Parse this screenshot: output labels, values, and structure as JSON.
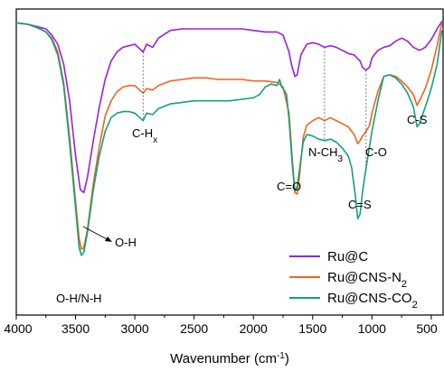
{
  "chart_data": {
    "type": "line",
    "title": "",
    "xlabel": "Wavenumber (cm",
    "xlabel_sup": "-1",
    "xlabel_end": ")",
    "ylabel": "",
    "xlim": [
      4000,
      400
    ],
    "ylim": [
      0,
      1
    ],
    "x_ticks": [
      4000,
      3500,
      3000,
      2500,
      2000,
      1500,
      1000,
      500
    ],
    "x_tick_labels": [
      "4000",
      "3500",
      "3000",
      "2500",
      "2000",
      "1500",
      "1000",
      "500"
    ],
    "legend_position": "bottom-right",
    "series": [
      {
        "name": "Ru@C",
        "color": "#9a1ee6",
        "points": [
          [
            4000,
            0.955
          ],
          [
            3900,
            0.95
          ],
          [
            3800,
            0.94
          ],
          [
            3750,
            0.935
          ],
          [
            3700,
            0.915
          ],
          [
            3650,
            0.885
          ],
          [
            3600,
            0.82
          ],
          [
            3550,
            0.7
          ],
          [
            3500,
            0.52
          ],
          [
            3460,
            0.41
          ],
          [
            3430,
            0.4
          ],
          [
            3400,
            0.45
          ],
          [
            3350,
            0.57
          ],
          [
            3300,
            0.68
          ],
          [
            3250,
            0.77
          ],
          [
            3200,
            0.83
          ],
          [
            3150,
            0.86
          ],
          [
            3100,
            0.875
          ],
          [
            3050,
            0.88
          ],
          [
            3000,
            0.885
          ],
          [
            2960,
            0.87
          ],
          [
            2930,
            0.86
          ],
          [
            2900,
            0.885
          ],
          [
            2850,
            0.875
          ],
          [
            2800,
            0.905
          ],
          [
            2700,
            0.93
          ],
          [
            2600,
            0.935
          ],
          [
            2500,
            0.935
          ],
          [
            2400,
            0.935
          ],
          [
            2300,
            0.935
          ],
          [
            2200,
            0.935
          ],
          [
            2100,
            0.935
          ],
          [
            2000,
            0.93
          ],
          [
            1900,
            0.925
          ],
          [
            1800,
            0.925
          ],
          [
            1750,
            0.915
          ],
          [
            1700,
            0.86
          ],
          [
            1680,
            0.82
          ],
          [
            1650,
            0.78
          ],
          [
            1630,
            0.785
          ],
          [
            1600,
            0.85
          ],
          [
            1550,
            0.885
          ],
          [
            1500,
            0.89
          ],
          [
            1450,
            0.885
          ],
          [
            1400,
            0.875
          ],
          [
            1350,
            0.88
          ],
          [
            1300,
            0.875
          ],
          [
            1250,
            0.865
          ],
          [
            1200,
            0.855
          ],
          [
            1150,
            0.85
          ],
          [
            1100,
            0.83
          ],
          [
            1080,
            0.81
          ],
          [
            1050,
            0.8
          ],
          [
            1020,
            0.81
          ],
          [
            1000,
            0.84
          ],
          [
            950,
            0.865
          ],
          [
            900,
            0.875
          ],
          [
            850,
            0.88
          ],
          [
            800,
            0.895
          ],
          [
            750,
            0.905
          ],
          [
            700,
            0.895
          ],
          [
            650,
            0.875
          ],
          [
            600,
            0.865
          ],
          [
            550,
            0.875
          ],
          [
            500,
            0.9
          ],
          [
            450,
            0.935
          ],
          [
            410,
            0.96
          ]
        ]
      },
      {
        "name": "Ru@CNS-N₂",
        "color": "#f0641e",
        "points": [
          [
            4000,
            0.955
          ],
          [
            3900,
            0.95
          ],
          [
            3800,
            0.935
          ],
          [
            3750,
            0.925
          ],
          [
            3700,
            0.905
          ],
          [
            3650,
            0.86
          ],
          [
            3600,
            0.76
          ],
          [
            3550,
            0.58
          ],
          [
            3500,
            0.37
          ],
          [
            3470,
            0.25
          ],
          [
            3450,
            0.215
          ],
          [
            3430,
            0.22
          ],
          [
            3400,
            0.28
          ],
          [
            3350,
            0.43
          ],
          [
            3300,
            0.55
          ],
          [
            3250,
            0.65
          ],
          [
            3200,
            0.7
          ],
          [
            3150,
            0.73
          ],
          [
            3100,
            0.745
          ],
          [
            3050,
            0.75
          ],
          [
            3000,
            0.75
          ],
          [
            2960,
            0.735
          ],
          [
            2930,
            0.725
          ],
          [
            2900,
            0.74
          ],
          [
            2850,
            0.735
          ],
          [
            2800,
            0.75
          ],
          [
            2700,
            0.765
          ],
          [
            2600,
            0.77
          ],
          [
            2500,
            0.775
          ],
          [
            2400,
            0.775
          ],
          [
            2300,
            0.77
          ],
          [
            2200,
            0.77
          ],
          [
            2100,
            0.77
          ],
          [
            2000,
            0.765
          ],
          [
            1900,
            0.765
          ],
          [
            1800,
            0.76
          ],
          [
            1750,
            0.745
          ],
          [
            1700,
            0.66
          ],
          [
            1670,
            0.5
          ],
          [
            1650,
            0.4
          ],
          [
            1630,
            0.395
          ],
          [
            1610,
            0.46
          ],
          [
            1580,
            0.58
          ],
          [
            1550,
            0.62
          ],
          [
            1500,
            0.635
          ],
          [
            1450,
            0.645
          ],
          [
            1400,
            0.635
          ],
          [
            1350,
            0.645
          ],
          [
            1300,
            0.635
          ],
          [
            1250,
            0.625
          ],
          [
            1200,
            0.615
          ],
          [
            1150,
            0.59
          ],
          [
            1120,
            0.56
          ],
          [
            1100,
            0.57
          ],
          [
            1080,
            0.585
          ],
          [
            1050,
            0.6
          ],
          [
            1020,
            0.62
          ],
          [
            1000,
            0.66
          ],
          [
            950,
            0.73
          ],
          [
            900,
            0.78
          ],
          [
            850,
            0.785
          ],
          [
            800,
            0.78
          ],
          [
            750,
            0.765
          ],
          [
            700,
            0.745
          ],
          [
            650,
            0.72
          ],
          [
            620,
            0.685
          ],
          [
            600,
            0.7
          ],
          [
            550,
            0.74
          ],
          [
            500,
            0.8
          ],
          [
            450,
            0.88
          ],
          [
            410,
            0.955
          ]
        ]
      },
      {
        "name": "Ru@CNS-CO₂",
        "color": "#14a078",
        "points": [
          [
            4000,
            0.955
          ],
          [
            3900,
            0.95
          ],
          [
            3800,
            0.935
          ],
          [
            3750,
            0.925
          ],
          [
            3700,
            0.9
          ],
          [
            3650,
            0.85
          ],
          [
            3600,
            0.75
          ],
          [
            3550,
            0.56
          ],
          [
            3500,
            0.35
          ],
          [
            3470,
            0.22
          ],
          [
            3450,
            0.195
          ],
          [
            3430,
            0.205
          ],
          [
            3400,
            0.27
          ],
          [
            3350,
            0.41
          ],
          [
            3300,
            0.52
          ],
          [
            3250,
            0.6
          ],
          [
            3200,
            0.645
          ],
          [
            3150,
            0.66
          ],
          [
            3100,
            0.665
          ],
          [
            3050,
            0.665
          ],
          [
            3000,
            0.66
          ],
          [
            2960,
            0.645
          ],
          [
            2930,
            0.635
          ],
          [
            2900,
            0.66
          ],
          [
            2850,
            0.655
          ],
          [
            2800,
            0.675
          ],
          [
            2700,
            0.69
          ],
          [
            2600,
            0.695
          ],
          [
            2500,
            0.7
          ],
          [
            2400,
            0.7
          ],
          [
            2300,
            0.7
          ],
          [
            2200,
            0.7
          ],
          [
            2100,
            0.705
          ],
          [
            2000,
            0.71
          ],
          [
            1950,
            0.72
          ],
          [
            1900,
            0.745
          ],
          [
            1850,
            0.755
          ],
          [
            1800,
            0.75
          ],
          [
            1780,
            0.77
          ],
          [
            1760,
            0.745
          ],
          [
            1740,
            0.735
          ],
          [
            1720,
            0.72
          ],
          [
            1700,
            0.64
          ],
          [
            1670,
            0.48
          ],
          [
            1650,
            0.405
          ],
          [
            1630,
            0.42
          ],
          [
            1610,
            0.48
          ],
          [
            1580,
            0.565
          ],
          [
            1550,
            0.59
          ],
          [
            1500,
            0.585
          ],
          [
            1450,
            0.575
          ],
          [
            1400,
            0.57
          ],
          [
            1350,
            0.575
          ],
          [
            1300,
            0.565
          ],
          [
            1250,
            0.545
          ],
          [
            1200,
            0.52
          ],
          [
            1170,
            0.48
          ],
          [
            1140,
            0.39
          ],
          [
            1120,
            0.315
          ],
          [
            1100,
            0.33
          ],
          [
            1080,
            0.4
          ],
          [
            1050,
            0.48
          ],
          [
            1000,
            0.6
          ],
          [
            950,
            0.7
          ],
          [
            900,
            0.78
          ],
          [
            850,
            0.785
          ],
          [
            800,
            0.775
          ],
          [
            750,
            0.755
          ],
          [
            700,
            0.725
          ],
          [
            650,
            0.68
          ],
          [
            620,
            0.615
          ],
          [
            600,
            0.625
          ],
          [
            550,
            0.68
          ],
          [
            500,
            0.74
          ],
          [
            450,
            0.82
          ],
          [
            410,
            0.93
          ]
        ]
      }
    ],
    "annotations": [
      {
        "id": "oh",
        "text": "O-H"
      },
      {
        "id": "ohnh",
        "text": "O-H/N-H"
      },
      {
        "id": "chx",
        "text": "C-H",
        "sub": "x"
      },
      {
        "id": "co_double",
        "text": "C=O"
      },
      {
        "id": "nch3",
        "text": "N-CH",
        "sub": "3"
      },
      {
        "id": "co_single",
        "text": "C-O"
      },
      {
        "id": "cs_double",
        "text": "C=S"
      },
      {
        "id": "cs_single",
        "text": "C-S"
      }
    ],
    "legend": [
      {
        "label": "Ru@C",
        "sub": ""
      },
      {
        "label": "Ru@CNS-N",
        "sub": "2"
      },
      {
        "label": "Ru@CNS-CO",
        "sub": "2"
      }
    ]
  }
}
